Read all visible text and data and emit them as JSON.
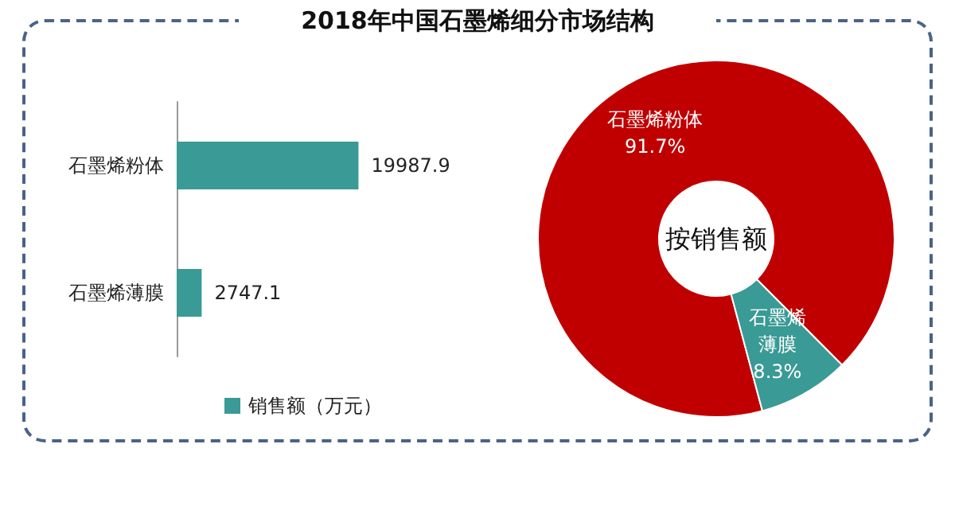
{
  "chart_data": [
    {
      "type": "bar",
      "title": "2018年中国石墨烯细分市场结构",
      "orientation": "horizontal",
      "categories": [
        "石墨烯粉体",
        "石墨烯薄膜"
      ],
      "series": [
        {
          "name": "销售额（万元）",
          "color": "#3a9a95",
          "values": [
            19987.9,
            2747.1
          ]
        }
      ],
      "data_labels": true,
      "legend": "bottom",
      "grid": false
    },
    {
      "type": "donut",
      "categories": [
        "石墨烯粉体",
        "石墨烯薄膜"
      ],
      "values": [
        91.7,
        8.3
      ],
      "colors": [
        "#c00000",
        "#3a9a95"
      ],
      "value_labels": [
        "91.7%",
        "8.3%"
      ],
      "annotations": [
        "按销售额"
      ]
    }
  ]
}
